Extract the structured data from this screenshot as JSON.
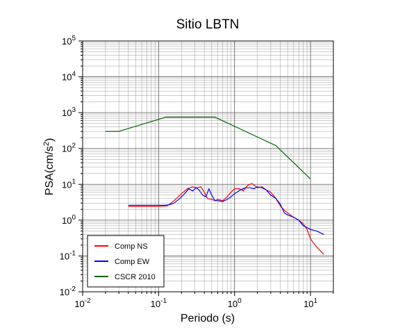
{
  "chart_data": {
    "type": "line",
    "title": "Sitio LBTN",
    "xlabel": "Periodo (s)",
    "ylabel": "PSA(cm/s2)",
    "xscale": "log",
    "yscale": "log",
    "xlim": [
      0.01,
      20
    ],
    "ylim": [
      0.01,
      100000
    ],
    "grid": true,
    "legend_position": "bottom-left",
    "x_tick_labels": [
      "10-2",
      "10-1",
      "100",
      "101"
    ],
    "y_tick_labels": [
      "10-2",
      "10-1",
      "100",
      "101",
      "102",
      "103",
      "104",
      "105"
    ],
    "series": [
      {
        "name": "Comp NS",
        "color": "#ff0000",
        "x": [
          0.04,
          0.06,
          0.08,
          0.1,
          0.13,
          0.16,
          0.2,
          0.24,
          0.28,
          0.32,
          0.36,
          0.4,
          0.44,
          0.5,
          0.55,
          0.6,
          0.7,
          0.8,
          0.9,
          1.0,
          1.15,
          1.3,
          1.5,
          1.7,
          2.0,
          2.3,
          2.6,
          3.0,
          3.5,
          4.0,
          4.5,
          5.0,
          6.0,
          7.0,
          8.0,
          9.0,
          10.0,
          12.0,
          15.0
        ],
        "values": [
          2.4,
          2.4,
          2.4,
          2.4,
          2.5,
          3.5,
          5.5,
          7.5,
          8.5,
          8.0,
          8.5,
          6.0,
          4.0,
          3.8,
          3.5,
          3.8,
          3.5,
          4.5,
          6.0,
          7.5,
          7.5,
          6.5,
          9.5,
          10.5,
          8.0,
          8.5,
          7.0,
          6.0,
          4.0,
          2.5,
          1.9,
          1.6,
          1.2,
          1.0,
          0.8,
          0.55,
          0.3,
          0.18,
          0.11
        ]
      },
      {
        "name": "Comp EW",
        "color": "#0000ff",
        "x": [
          0.04,
          0.06,
          0.08,
          0.1,
          0.12,
          0.14,
          0.16,
          0.19,
          0.22,
          0.25,
          0.28,
          0.31,
          0.34,
          0.38,
          0.42,
          0.46,
          0.5,
          0.55,
          0.6,
          0.7,
          0.8,
          0.9,
          1.0,
          1.2,
          1.4,
          1.6,
          1.8,
          2.0,
          2.3,
          2.6,
          3.0,
          3.5,
          4.0,
          4.5,
          5.0,
          6.0,
          7.0,
          8.0,
          10.0,
          12.0,
          15.0
        ],
        "values": [
          2.6,
          2.6,
          2.6,
          2.6,
          2.6,
          2.7,
          3.0,
          4.0,
          5.5,
          7.5,
          6.5,
          8.0,
          7.0,
          5.0,
          4.5,
          7.5,
          5.0,
          3.5,
          3.5,
          3.3,
          3.8,
          4.5,
          5.5,
          7.0,
          8.0,
          8.0,
          7.5,
          8.5,
          8.0,
          7.0,
          5.0,
          4.0,
          2.8,
          1.6,
          1.4,
          1.2,
          1.0,
          0.7,
          0.55,
          0.5,
          0.4
        ]
      },
      {
        "name": "CSCR 2010",
        "color": "#006400",
        "x": [
          0.02,
          0.03,
          0.125,
          0.55,
          3.5,
          10.0
        ],
        "values": [
          300,
          300,
          750,
          750,
          120,
          14
        ]
      }
    ]
  }
}
